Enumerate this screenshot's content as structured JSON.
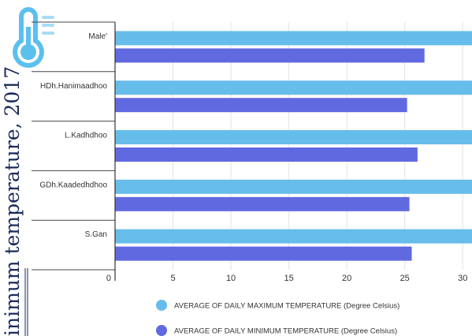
{
  "side_title": "inimum temperature, 2017",
  "colors": {
    "max_series": "#67bdea",
    "min_series": "#6169e0",
    "thermometer": "#5cc0ee",
    "side_title": "#1a2a5a"
  },
  "icon": "thermometer-icon",
  "chart_data": {
    "type": "bar",
    "orientation": "horizontal",
    "categories": [
      "Male'",
      "HDh.Hanimaadhoo",
      "L.Kadhdhoo",
      "GDh.Kaadedhdhoo",
      "S.Gan"
    ],
    "series": [
      {
        "name": "AVERAGE OF DAILY MAXIMUM TEMPERATURE (Degree Celsius)",
        "values": [
          31.3,
          31.6,
          31.4,
          31.5,
          31.4
        ]
      },
      {
        "name": "AVERAGE OF DAILY MINIMUM TEMPERATURE (Degree Celsius)",
        "values": [
          26.7,
          25.2,
          26.1,
          25.4,
          25.6
        ]
      }
    ],
    "ticks": [
      0,
      5,
      10,
      15,
      20,
      25,
      30
    ],
    "xlim": [
      0,
      30.8
    ],
    "grid": true,
    "legend": "bottom"
  }
}
